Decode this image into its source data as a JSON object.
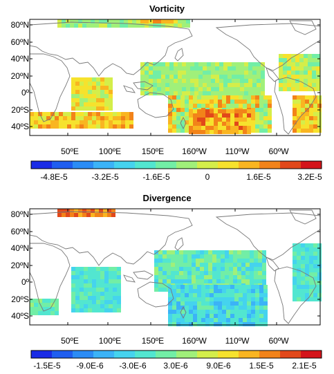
{
  "panels": [
    {
      "title": "Vorticity",
      "lat_labels": [
        "80ºN",
        "60ºN",
        "40ºN",
        "20ºN",
        "0º",
        "20ºS",
        "40ºS"
      ],
      "lon_labels": [
        "50ºE",
        "100ºE",
        "150ºE",
        "160ºW",
        "110ºW",
        "60ºW"
      ],
      "colorbar_labels": [
        "-4.8E-5",
        "-3.2E-5",
        "-1.6E-5",
        "0",
        "1.6E-5",
        "3.2E-5"
      ]
    },
    {
      "title": "Divergence",
      "lat_labels": [
        "80ºN",
        "60ºN",
        "40ºN",
        "20ºN",
        "0º",
        "20ºS",
        "40ºS"
      ],
      "lon_labels": [
        "50ºE",
        "100ºE",
        "150ºE",
        "160ºW",
        "110ºW",
        "60ºW"
      ],
      "colorbar_labels": [
        "-1.5E-5",
        "-9.0E-6",
        "-3.0E-6",
        "3.0E-6",
        "9.0E-6",
        "1.5E-5",
        "2.1E-5"
      ]
    }
  ],
  "colors": {
    "scale": [
      "#1a2ce6",
      "#1f5ef0",
      "#2b8cf5",
      "#3bb3f7",
      "#45d3ee",
      "#52e6d0",
      "#72eea6",
      "#a0f07a",
      "#d4ee4a",
      "#f6e22d",
      "#f9b521",
      "#f28319",
      "#e2481a",
      "#d4141a"
    ],
    "coast": "#777777"
  }
}
